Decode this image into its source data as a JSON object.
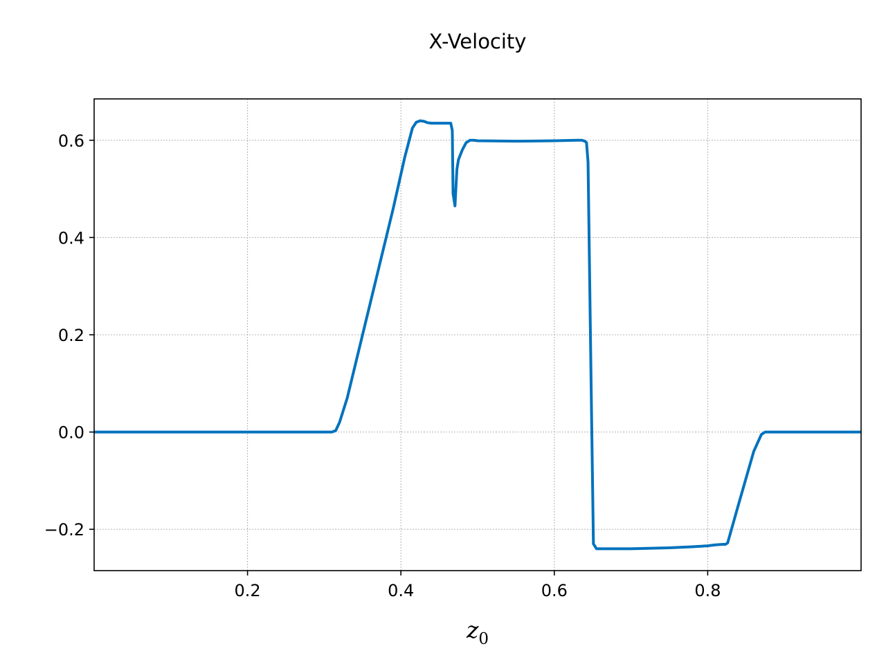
{
  "chart_data": {
    "type": "line",
    "title": "X-Velocity",
    "xlabel_main": "z",
    "xlabel_sub": "0",
    "ylabel": "",
    "xlim": [
      0.0,
      1.0
    ],
    "ylim": [
      -0.285,
      0.685
    ],
    "grid": true,
    "xticks": [
      0.2,
      0.4,
      0.6,
      0.8
    ],
    "xtick_labels": [
      "0.2",
      "0.4",
      "0.6",
      "0.8"
    ],
    "yticks": [
      -0.2,
      0.0,
      0.2,
      0.4,
      0.6
    ],
    "ytick_labels": [
      "−0.2",
      "0.0",
      "0.2",
      "0.4",
      "0.6"
    ],
    "colors": {
      "line": "#0072BD",
      "grid": "#b0b0b0",
      "axes": "#000000"
    },
    "series": [
      {
        "x": [
          0.0,
          0.1,
          0.2,
          0.3,
          0.31,
          0.315,
          0.32,
          0.33,
          0.35,
          0.37,
          0.39,
          0.405,
          0.415,
          0.42,
          0.425,
          0.43,
          0.435,
          0.44,
          0.45,
          0.465,
          0.467,
          0.468,
          0.4705,
          0.473,
          0.475,
          0.48,
          0.485,
          0.49,
          0.495,
          0.5,
          0.55,
          0.6,
          0.63,
          0.636,
          0.64,
          0.642,
          0.644,
          0.648,
          0.651,
          0.655,
          0.7,
          0.75,
          0.78,
          0.8,
          0.81,
          0.82,
          0.823,
          0.826,
          0.84,
          0.86,
          0.87,
          0.875,
          0.9,
          1.0
        ],
        "y": [
          0.0,
          0.0,
          0.0,
          0.0,
          0.0,
          0.003,
          0.02,
          0.07,
          0.2,
          0.33,
          0.46,
          0.565,
          0.625,
          0.637,
          0.64,
          0.639,
          0.636,
          0.635,
          0.635,
          0.635,
          0.62,
          0.49,
          0.465,
          0.54,
          0.56,
          0.58,
          0.595,
          0.6,
          0.6,
          0.599,
          0.598,
          0.599,
          0.6,
          0.6,
          0.598,
          0.595,
          0.555,
          0.1,
          -0.23,
          -0.24,
          -0.24,
          -0.238,
          -0.236,
          -0.234,
          -0.232,
          -0.231,
          -0.231,
          -0.228,
          -0.15,
          -0.04,
          -0.005,
          0.0,
          0.0,
          0.0
        ]
      }
    ]
  }
}
